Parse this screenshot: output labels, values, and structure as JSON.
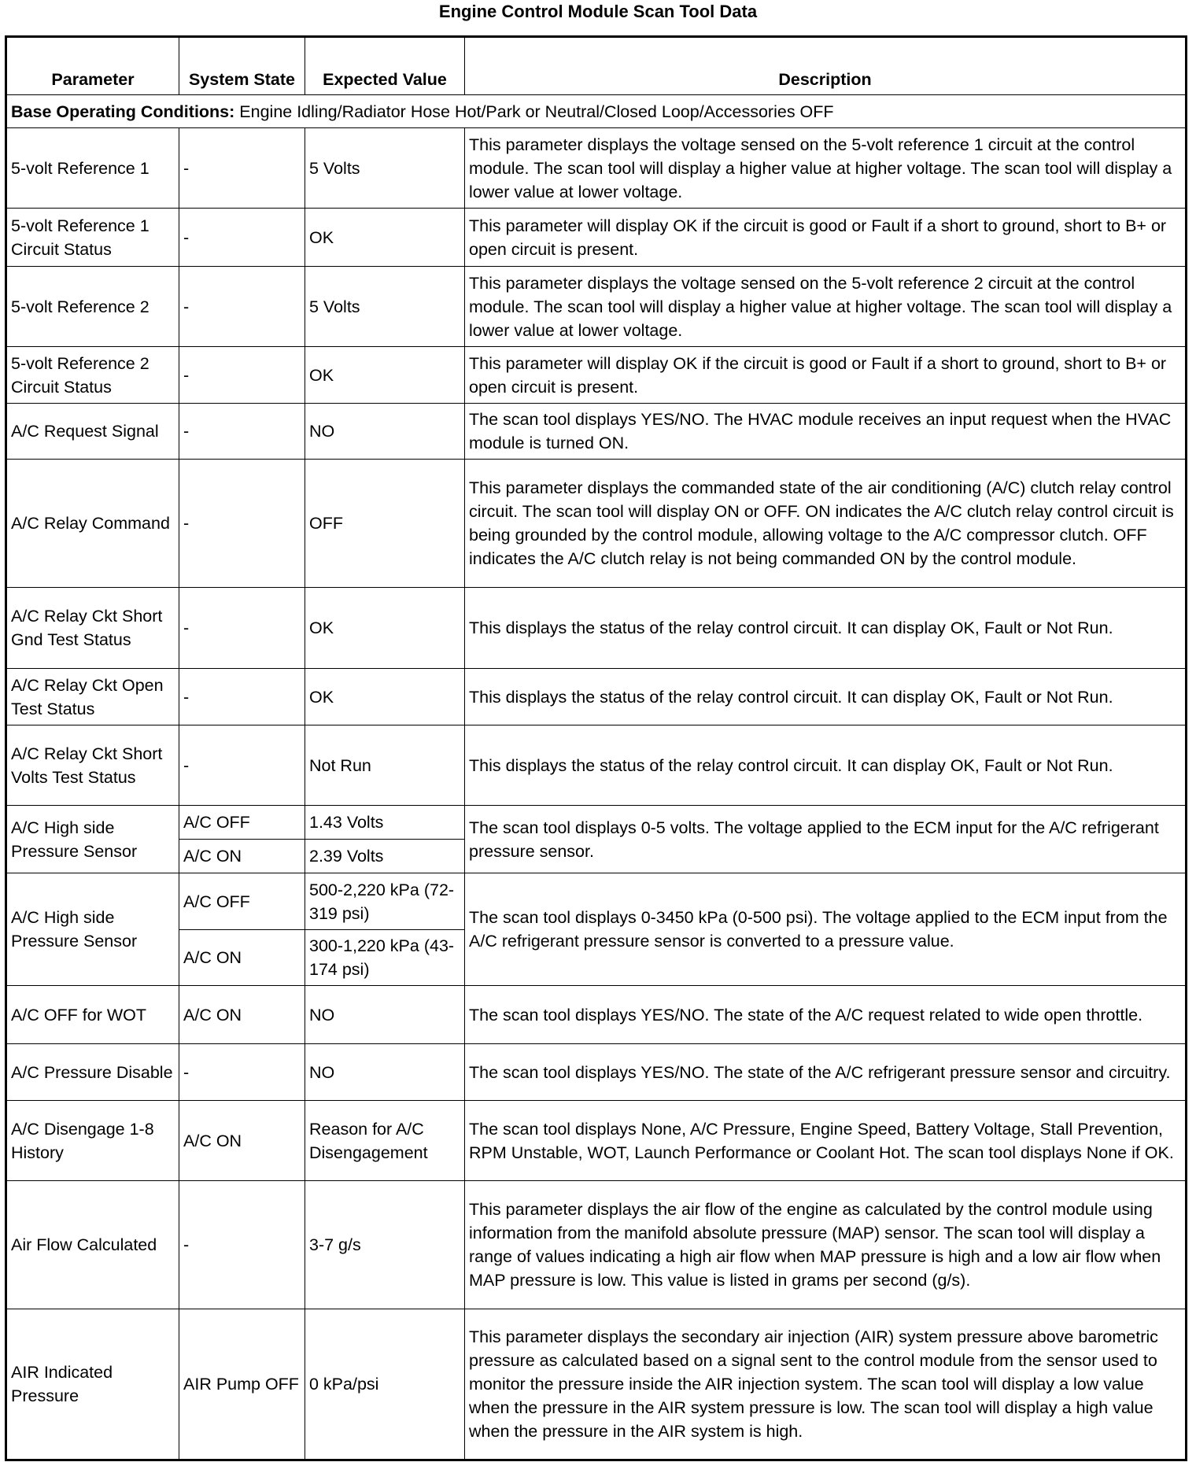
{
  "title": "Engine Control Module Scan Tool Data",
  "headers": {
    "parameter": "Parameter",
    "system_state": "System State",
    "expected_value": "Expected Value",
    "description": "Description"
  },
  "base_conditions": {
    "label": "Base Operating Conditions:",
    "text": " Engine Idling/Radiator Hose Hot/Park or Neutral/Closed Loop/Accessories OFF"
  },
  "rows": [
    {
      "parameter": "5-volt Reference 1",
      "states": [
        {
          "state": "-",
          "value": "5 Volts"
        }
      ],
      "description": "This parameter displays the voltage sensed on the 5-volt reference 1 circuit at the control module. The scan tool will display a higher value at higher voltage. The scan tool will display a lower value at lower voltage."
    },
    {
      "parameter": "5-volt Reference 1 Circuit Status",
      "states": [
        {
          "state": "-",
          "value": "OK"
        }
      ],
      "description": "This parameter will display OK if the circuit is good or Fault if a short to ground, short to B+ or open circuit is present."
    },
    {
      "parameter": "5-volt Reference 2",
      "states": [
        {
          "state": "-",
          "value": "5 Volts"
        }
      ],
      "description": "This parameter displays the voltage sensed on the 5-volt reference 2 circuit at the control module. The scan tool will display a higher value at higher voltage. The scan tool will display a lower value at lower voltage."
    },
    {
      "parameter": "5-volt Reference 2 Circuit Status",
      "states": [
        {
          "state": "-",
          "value": "OK"
        }
      ],
      "description": "This parameter will display OK if the circuit is good or Fault if a short to ground, short to B+ or open circuit is present."
    },
    {
      "parameter": "A/C Request Signal",
      "states": [
        {
          "state": "-",
          "value": "NO"
        }
      ],
      "description": "The scan tool displays YES/NO. The HVAC module receives an input request when the HVAC module is turned ON."
    },
    {
      "parameter": "A/C Relay Command",
      "states": [
        {
          "state": "-",
          "value": "OFF"
        }
      ],
      "description": "This parameter displays the commanded state of the air conditioning (A/C) clutch relay control circuit. The scan tool will display ON or OFF. ON indicates the A/C clutch relay control circuit is being grounded by the control module, allowing voltage to the A/C compressor clutch. OFF indicates the A/C clutch relay is not being commanded ON by the control module."
    },
    {
      "parameter": "A/C Relay Ckt Short Gnd Test Status",
      "states": [
        {
          "state": "-",
          "value": "OK"
        }
      ],
      "description": "This displays the status of the relay control circuit. It can display OK, Fault or Not Run."
    },
    {
      "parameter": "A/C Relay Ckt Open Test Status",
      "states": [
        {
          "state": "-",
          "value": "OK"
        }
      ],
      "description": "This displays the status of the relay control circuit. It can display OK, Fault or Not Run."
    },
    {
      "parameter": "A/C Relay Ckt Short Volts Test Status",
      "states": [
        {
          "state": "-",
          "value": "Not Run"
        }
      ],
      "description": "This displays the status of the relay control circuit. It can display OK, Fault or Not Run."
    },
    {
      "parameter": "A/C High side Pressure Sensor",
      "states": [
        {
          "state": "A/C OFF",
          "value": "1.43 Volts"
        },
        {
          "state": "A/C ON",
          "value": "2.39 Volts"
        }
      ],
      "description": "The scan tool displays 0-5 volts. The voltage applied to the ECM input for the A/C refrigerant pressure sensor."
    },
    {
      "parameter": "A/C High side Pressure Sensor",
      "states": [
        {
          "state": "A/C OFF",
          "value": "500-2,220 kPa (72-319 psi)"
        },
        {
          "state": "A/C ON",
          "value": "300-1,220 kPa (43-174 psi)"
        }
      ],
      "description": "The scan tool displays 0-3450 kPa (0-500 psi). The voltage applied to the ECM input from the A/C refrigerant pressure sensor is converted to a pressure value."
    },
    {
      "parameter": "A/C OFF for WOT",
      "states": [
        {
          "state": "A/C ON",
          "value": "NO"
        }
      ],
      "description": "The scan tool displays YES/NO. The state of the A/C request related to wide open throttle."
    },
    {
      "parameter": "A/C Pressure Disable",
      "states": [
        {
          "state": "-",
          "value": "NO"
        }
      ],
      "description": "The scan tool displays YES/NO. The state of the A/C refrigerant pressure sensor and circuitry."
    },
    {
      "parameter": "A/C Disengage 1-8 History",
      "states": [
        {
          "state": "A/C ON",
          "value": "Reason for A/C Disengagement"
        }
      ],
      "description": "The scan tool displays None, A/C Pressure, Engine Speed, Battery Voltage, Stall Prevention, RPM Unstable, WOT, Launch Performance or Coolant Hot. The scan tool displays None if OK."
    },
    {
      "parameter": "Air Flow Calculated",
      "states": [
        {
          "state": "-",
          "value": "3-7 g/s"
        }
      ],
      "description": "This parameter displays the air flow of the engine as calculated by the control module using information from the manifold absolute pressure (MAP) sensor. The scan tool will display a range of values indicating a high air flow when MAP pressure is high and a low air flow when MAP pressure is low. This value is listed in grams per second (g/s)."
    },
    {
      "parameter": "AIR Indicated Pressure",
      "states": [
        {
          "state": "AIR Pump OFF",
          "value": "0 kPa/psi"
        }
      ],
      "description": "This parameter displays the secondary air injection (AIR) system pressure above barometric pressure as calculated based on a signal sent to the control module from the sensor used to monitor the pressure inside the AIR injection system. The scan tool will display a low value when the pressure in the AIR system pressure is low. The scan tool will display a high value when the pressure in the AIR system is high."
    }
  ]
}
